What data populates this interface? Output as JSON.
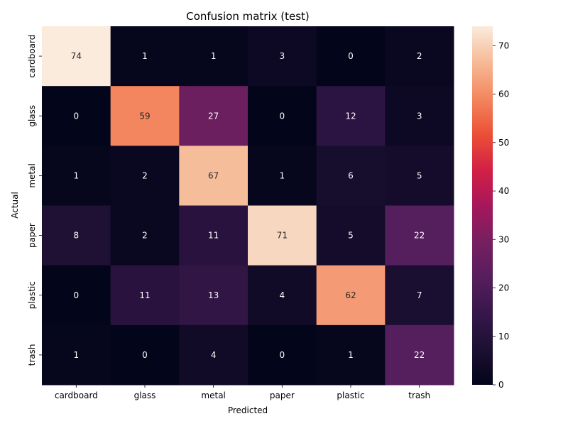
{
  "chart_data": {
    "type": "heatmap",
    "title": "Confusion matrix (test)",
    "xlabel": "Predicted",
    "ylabel": "Actual",
    "x_categories": [
      "cardboard",
      "glass",
      "metal",
      "paper",
      "plastic",
      "trash"
    ],
    "y_categories": [
      "cardboard",
      "glass",
      "metal",
      "paper",
      "plastic",
      "trash"
    ],
    "matrix": [
      [
        74,
        1,
        1,
        3,
        0,
        2
      ],
      [
        0,
        59,
        27,
        0,
        12,
        3
      ],
      [
        1,
        2,
        67,
        1,
        6,
        5
      ],
      [
        8,
        2,
        11,
        71,
        5,
        22
      ],
      [
        0,
        11,
        13,
        4,
        62,
        7
      ],
      [
        1,
        0,
        4,
        0,
        1,
        22
      ]
    ],
    "colorbar": {
      "min": 0,
      "max": 74,
      "ticks": [
        0,
        10,
        20,
        30,
        40,
        50,
        60,
        70
      ]
    },
    "colormap": "rocket"
  }
}
